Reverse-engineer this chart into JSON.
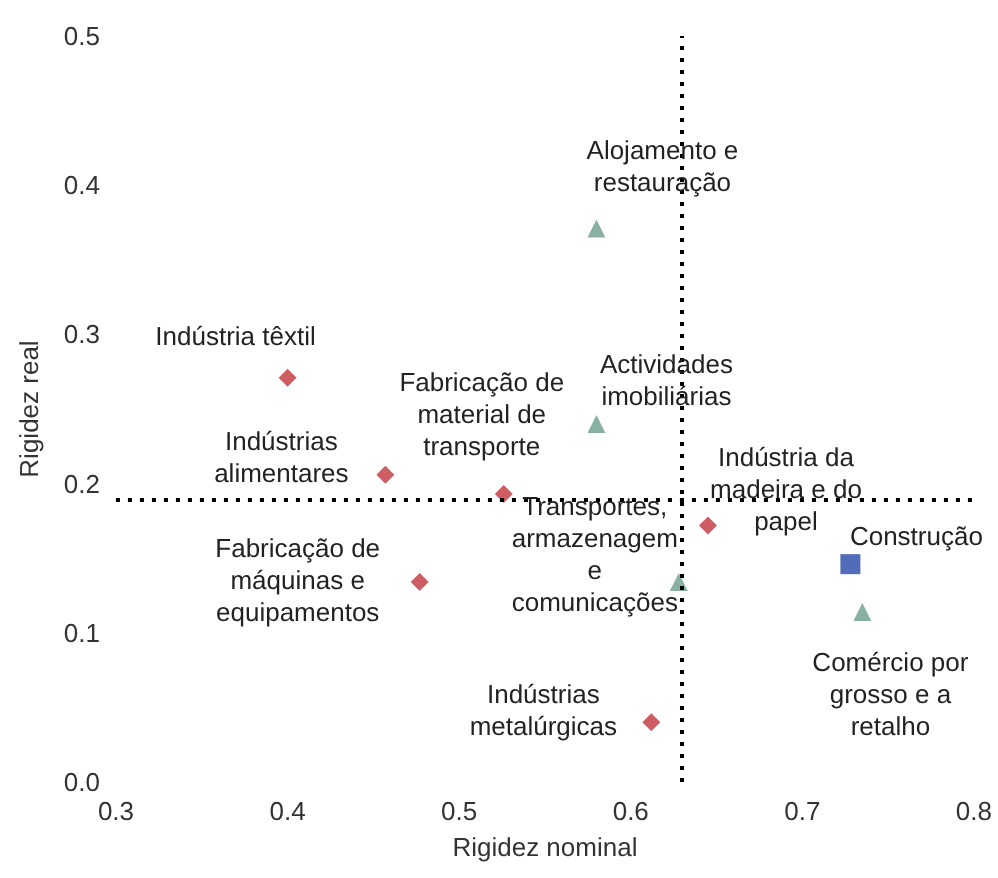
{
  "chart_data": {
    "type": "scatter",
    "xlabel": "Rigidez nominal",
    "ylabel": "Rigidez real",
    "xlim": [
      0.3,
      0.8
    ],
    "xticks": [
      0.3,
      0.4,
      0.5,
      0.6,
      0.7,
      0.8
    ],
    "ylim": [
      0,
      0.5
    ],
    "yticks": [
      {
        "value": 0,
        "label": "0.0"
      },
      0.1,
      0.2,
      0.3,
      0.4,
      0.5
    ],
    "grid": false,
    "series": [
      {
        "color": "#c0353b",
        "marker": "diamond",
        "x": [
          0.4,
          0.457,
          0.526,
          0.477,
          0.645,
          0.612
        ],
        "values": [
          0.271,
          0.206,
          0.193,
          0.134,
          0.172,
          0.04
        ]
      },
      {
        "color": "#6b9e8b",
        "marker": "triangle",
        "x": [
          0.58,
          0.58,
          0.628,
          0.735
        ],
        "values": [
          0.371,
          0.24,
          0.134,
          0.114
        ]
      },
      {
        "color": "#2547a8",
        "marker": "square",
        "x": [
          0.728
        ],
        "values": [
          0.146
        ]
      }
    ],
    "ref_lines": [
      {
        "axis": "x",
        "value": 0.63,
        "color": "#000000",
        "line_style": "dotted"
      },
      {
        "axis": "y",
        "value": 0.189,
        "color": "#000000",
        "line_style": "dotted"
      }
    ],
    "annotations": [
      {
        "text": "Indústria têxtil",
        "x": 0.4,
        "y": 0.271
      },
      {
        "text": "Alojamento e\nrestauração",
        "x": 0.58,
        "y": 0.371
      },
      {
        "text": "Fabricação de\nmaterial de\ntransporte",
        "x": 0.526,
        "y": 0.193
      },
      {
        "text": "Actividades\nimobiliárias",
        "x": 0.58,
        "y": 0.24
      },
      {
        "text": "Indústrias\nalimentares",
        "x": 0.457,
        "y": 0.206
      },
      {
        "text": "Indústria da\nmadeira e do\npapel",
        "x": 0.645,
        "y": 0.172
      },
      {
        "text": "Transportes,\narmazenagem\ne\ncomunicações",
        "x": 0.628,
        "y": 0.134
      },
      {
        "text": "Construção",
        "x": 0.728,
        "y": 0.146
      },
      {
        "text": "Fabricação de\nmáquinas e\nequipamentos",
        "x": 0.477,
        "y": 0.134
      },
      {
        "text": "Comércio por\ngrosso e a\nretalho",
        "x": 0.735,
        "y": 0.114
      },
      {
        "text": "Indústrias\nmetalúrgicas",
        "x": 0.612,
        "y": 0.04
      }
    ]
  }
}
